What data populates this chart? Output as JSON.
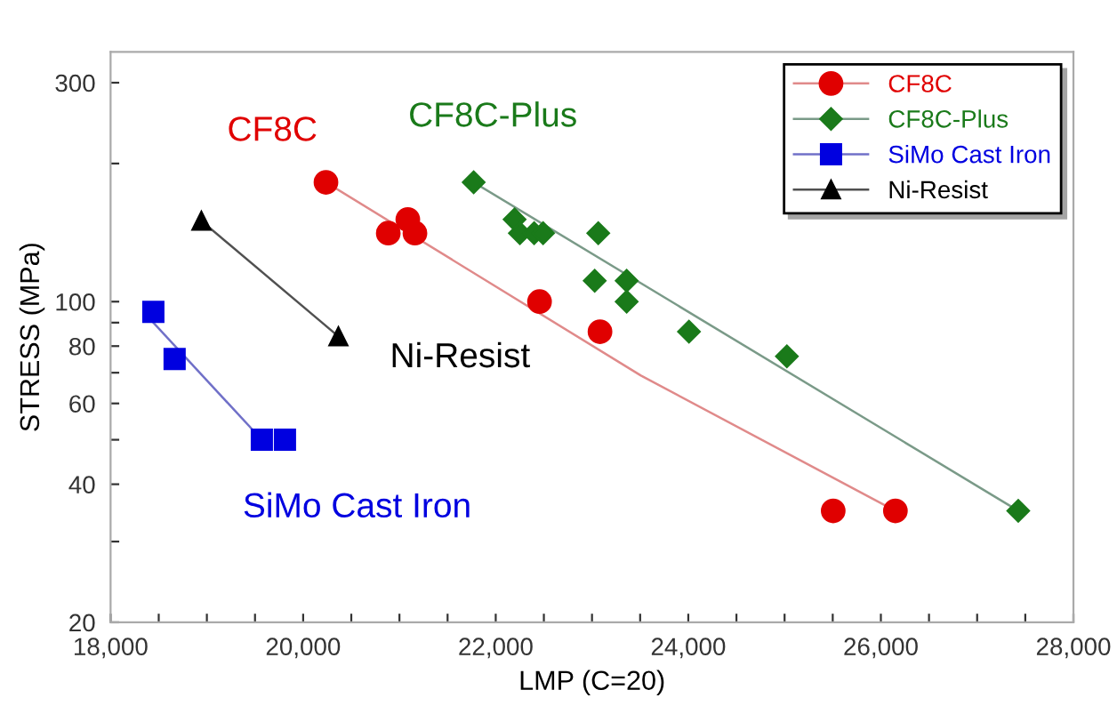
{
  "chart_data": {
    "type": "scatter",
    "xlabel": "LMP (C=20)",
    "ylabel": "STRESS (MPa)",
    "log": "y",
    "grid": false,
    "legend": "top right",
    "xlim": [
      18000,
      28000
    ],
    "ylim": [
      20,
      350
    ],
    "xticks": [
      {
        "value": 18000,
        "label": "18,000"
      },
      {
        "value": 18500,
        "label": null
      },
      {
        "value": 19000,
        "label": null
      },
      {
        "value": 19500,
        "label": null
      },
      {
        "value": 20000,
        "label": "20,000"
      },
      {
        "value": 20500,
        "label": null
      },
      {
        "value": 21000,
        "label": null
      },
      {
        "value": 21500,
        "label": null
      },
      {
        "value": 22000,
        "label": "22,000"
      },
      {
        "value": 22500,
        "label": null
      },
      {
        "value": 23000,
        "label": null
      },
      {
        "value": 23500,
        "label": null
      },
      {
        "value": 24000,
        "label": "24,000"
      },
      {
        "value": 24500,
        "label": null
      },
      {
        "value": 25000,
        "label": null
      },
      {
        "value": 25500,
        "label": null
      },
      {
        "value": 26000,
        "label": "26,000"
      },
      {
        "value": 26500,
        "label": null
      },
      {
        "value": 27000,
        "label": null
      },
      {
        "value": 27500,
        "label": null
      },
      {
        "value": 28000,
        "label": "28,000"
      }
    ],
    "yticks": [
      20,
      {
        "value": 30,
        "label": null
      },
      40,
      {
        "value": 50,
        "label": null
      },
      60,
      {
        "value": 70,
        "label": null
      },
      80,
      {
        "value": 90,
        "label": null
      },
      100,
      {
        "value": 200,
        "label": null
      },
      300
    ],
    "series": [
      {
        "name": "CF8C",
        "color": "#e00000",
        "marker": "circle",
        "x": [
          20237,
          20884,
          21087,
          21161,
          22455,
          23083,
          25505,
          26151
        ],
        "values": [
          182,
          141,
          151,
          141,
          100,
          86,
          35,
          35
        ]
      },
      {
        "name": "CF8C-Plus",
        "color": "#1a7a1a",
        "marker": "diamond",
        "x": [
          21771,
          22196,
          22251,
          22399,
          22492,
          23065,
          23028,
          23360,
          23360,
          24007,
          25024,
          27427
        ],
        "values": [
          182,
          151,
          141,
          141,
          141,
          141,
          111,
          111,
          100,
          86,
          76,
          35
        ]
      },
      {
        "name": "SiMo Cast Iron",
        "color": "#0000e0",
        "marker": "square",
        "x": [
          18444,
          18665,
          19571,
          19811
        ],
        "values": [
          95,
          75,
          50,
          50
        ]
      },
      {
        "name": "Ni-Resist",
        "color": "#000000",
        "marker": "triangle",
        "x": [
          18943,
          20366
        ],
        "values": [
          150,
          84
        ]
      },
      {
        "type": "line",
        "color": "#e08a8a",
        "marker": "none",
        "x": [
          20237,
          23508,
          26151
        ],
        "values": [
          182,
          69,
          35
        ]
      },
      {
        "type": "line",
        "color": "#7a9a88",
        "marker": "none",
        "x": [
          21771,
          27427
        ],
        "values": [
          182,
          35
        ]
      },
      {
        "type": "line",
        "color": "#7070c8",
        "marker": "none",
        "x": [
          18444,
          19571
        ],
        "values": [
          90,
          50
        ]
      },
      {
        "type": "line",
        "color": "#505050",
        "marker": "none",
        "x": [
          18943,
          20366
        ],
        "values": [
          150,
          84
        ]
      }
    ],
    "annotations": [
      "CF8C",
      "CF8C-Plus",
      "SiMo Cast Iron",
      "Ni-Resist"
    ]
  }
}
